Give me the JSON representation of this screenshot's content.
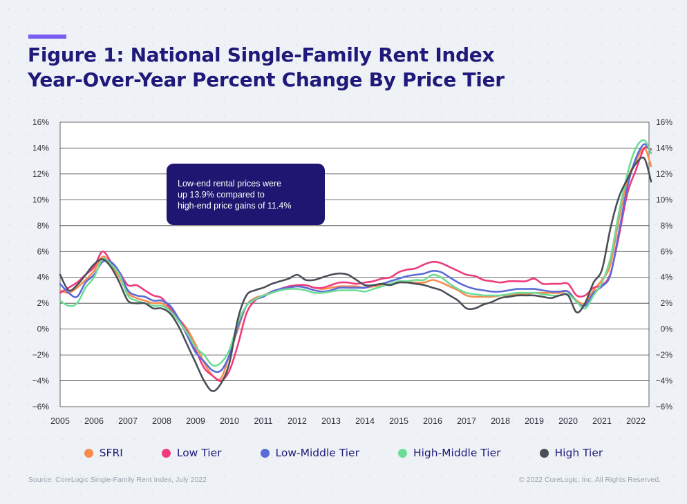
{
  "title_lines": [
    "Figure 1: National Single-Family Rent Index",
    "Year-Over-Year Percent Change By Price Tier"
  ],
  "callout": [
    "Low-end rental prices were",
    "up 13.9% compared to",
    "high-end price gains of 11.4%"
  ],
  "source": "Source: CoreLogic Single-Family Rent Index, July 2022",
  "copyright": "© 2022 CoreLogic, Inc. All Rights Reserved.",
  "chart_data": {
    "type": "line",
    "title": "Figure 1: National Single-Family Rent Index Year-Over-Year Percent Change By Price Tier",
    "xlabel": "",
    "ylabel": "",
    "xlim": [
      2005,
      2022.45
    ],
    "ylim": [
      -6,
      16
    ],
    "grid": true,
    "legend_position": "bottom",
    "x_ticks": [
      "2005",
      "2006",
      "2007",
      "2008",
      "2009",
      "2010",
      "2011",
      "2012",
      "2013",
      "2014",
      "2015",
      "2016",
      "2017",
      "2018",
      "2019",
      "2020",
      "2021",
      "2022"
    ],
    "y_ticks": [
      "−6%",
      "−4%",
      "−2%",
      "0%",
      "2%",
      "4%",
      "6%",
      "8%",
      "10%",
      "12%",
      "14%",
      "16%"
    ],
    "x": [
      2005.0,
      2005.25,
      2005.5,
      2005.75,
      2006.0,
      2006.25,
      2006.5,
      2006.75,
      2007.0,
      2007.25,
      2007.5,
      2007.75,
      2008.0,
      2008.25,
      2008.5,
      2008.75,
      2009.0,
      2009.25,
      2009.5,
      2009.75,
      2010.0,
      2010.25,
      2010.5,
      2010.75,
      2011.0,
      2011.25,
      2011.5,
      2011.75,
      2012.0,
      2012.25,
      2012.5,
      2012.75,
      2013.0,
      2013.25,
      2013.5,
      2013.75,
      2014.0,
      2014.25,
      2014.5,
      2014.75,
      2015.0,
      2015.25,
      2015.5,
      2015.75,
      2016.0,
      2016.25,
      2016.5,
      2016.75,
      2017.0,
      2017.25,
      2017.5,
      2017.75,
      2018.0,
      2018.25,
      2018.5,
      2018.75,
      2019.0,
      2019.25,
      2019.5,
      2019.75,
      2020.0,
      2020.25,
      2020.5,
      2020.75,
      2021.0,
      2021.25,
      2021.5,
      2021.75,
      2022.0,
      2022.25,
      2022.45
    ],
    "series": [
      {
        "name": "SFRI",
        "color": "#f78b4d",
        "values": [
          3.0,
          2.8,
          3.2,
          3.8,
          4.5,
          5.6,
          5.0,
          4.0,
          2.8,
          2.4,
          2.2,
          2.0,
          2.0,
          1.5,
          0.8,
          0.0,
          -1.2,
          -2.6,
          -3.6,
          -3.8,
          -2.0,
          0.0,
          1.8,
          2.4,
          2.6,
          2.9,
          3.1,
          3.3,
          3.4,
          3.4,
          3.2,
          3.1,
          3.2,
          3.3,
          3.3,
          3.3,
          3.2,
          3.3,
          3.4,
          3.5,
          3.6,
          3.6,
          3.6,
          3.6,
          3.8,
          3.6,
          3.3,
          3.0,
          2.6,
          2.5,
          2.5,
          2.5,
          2.6,
          2.6,
          2.7,
          2.7,
          2.8,
          2.8,
          2.8,
          2.8,
          2.9,
          2.2,
          2.0,
          3.0,
          3.8,
          5.0,
          8.5,
          11.5,
          13.0,
          14.0,
          12.6
        ]
      },
      {
        "name": "Low Tier",
        "color": "#ef3b7e",
        "values": [
          2.8,
          3.2,
          3.6,
          4.2,
          4.8,
          6.0,
          5.2,
          4.4,
          3.4,
          3.4,
          3.0,
          2.6,
          2.4,
          1.6,
          0.8,
          -0.2,
          -1.6,
          -3.0,
          -3.6,
          -4.0,
          -3.2,
          -1.2,
          1.2,
          2.2,
          2.6,
          2.8,
          3.1,
          3.3,
          3.4,
          3.4,
          3.2,
          3.2,
          3.4,
          3.6,
          3.6,
          3.5,
          3.6,
          3.7,
          3.9,
          4.0,
          4.4,
          4.6,
          4.7,
          5.0,
          5.2,
          5.1,
          4.8,
          4.5,
          4.2,
          4.1,
          3.8,
          3.7,
          3.6,
          3.7,
          3.7,
          3.7,
          3.9,
          3.5,
          3.5,
          3.5,
          3.5,
          2.6,
          2.6,
          3.2,
          3.4,
          4.3,
          7.2,
          10.5,
          12.3,
          14.0,
          13.9
        ]
      },
      {
        "name": "Low-Middle Tier",
        "color": "#5b6bd8",
        "values": [
          3.5,
          2.8,
          2.5,
          3.6,
          4.2,
          5.2,
          5.2,
          4.4,
          3.0,
          2.6,
          2.5,
          2.2,
          2.2,
          1.8,
          0.8,
          -0.5,
          -1.8,
          -2.5,
          -3.2,
          -3.2,
          -2.0,
          0.2,
          1.8,
          2.3,
          2.5,
          2.9,
          3.1,
          3.2,
          3.3,
          3.2,
          3.0,
          2.9,
          3.0,
          3.2,
          3.2,
          3.2,
          3.2,
          3.4,
          3.5,
          3.7,
          3.9,
          4.1,
          4.2,
          4.3,
          4.5,
          4.4,
          4.0,
          3.6,
          3.3,
          3.1,
          3.0,
          2.9,
          2.9,
          3.0,
          3.1,
          3.1,
          3.1,
          3.0,
          2.9,
          2.9,
          2.9,
          2.1,
          1.8,
          2.8,
          3.3,
          4.2,
          7.5,
          11.0,
          13.2,
          14.3,
          13.6
        ]
      },
      {
        "name": "High-Middle Tier",
        "color": "#6edc96",
        "values": [
          2.2,
          1.8,
          2.0,
          3.2,
          4.0,
          5.4,
          5.0,
          4.2,
          2.6,
          2.2,
          2.0,
          1.8,
          1.8,
          1.4,
          0.6,
          -0.3,
          -1.4,
          -2.0,
          -2.8,
          -2.6,
          -1.6,
          0.5,
          1.8,
          2.3,
          2.6,
          2.8,
          3.0,
          3.1,
          3.1,
          3.0,
          2.8,
          2.8,
          2.9,
          3.0,
          3.0,
          3.0,
          2.9,
          3.1,
          3.3,
          3.5,
          3.7,
          3.7,
          3.8,
          3.8,
          4.2,
          4.0,
          3.5,
          3.1,
          2.8,
          2.7,
          2.6,
          2.6,
          2.6,
          2.7,
          2.8,
          2.8,
          2.8,
          2.7,
          2.6,
          2.6,
          2.7,
          2.1,
          1.6,
          2.6,
          3.6,
          5.5,
          9.0,
          12.0,
          14.0,
          14.6,
          13.6
        ]
      },
      {
        "name": "High Tier",
        "color": "#4a4e57",
        "values": [
          4.2,
          3.0,
          3.4,
          4.2,
          5.0,
          5.4,
          4.8,
          3.6,
          2.2,
          2.0,
          2.0,
          1.6,
          1.6,
          1.2,
          0.2,
          -1.2,
          -2.6,
          -4.0,
          -4.8,
          -4.2,
          -2.6,
          0.8,
          2.6,
          3.0,
          3.2,
          3.5,
          3.7,
          3.9,
          4.2,
          3.8,
          3.8,
          4.0,
          4.2,
          4.3,
          4.2,
          3.8,
          3.4,
          3.4,
          3.5,
          3.4,
          3.6,
          3.6,
          3.5,
          3.4,
          3.2,
          3.0,
          2.6,
          2.2,
          1.6,
          1.6,
          1.9,
          2.1,
          2.4,
          2.5,
          2.6,
          2.6,
          2.6,
          2.5,
          2.4,
          2.6,
          2.6,
          1.3,
          2.0,
          3.6,
          4.6,
          7.8,
          10.2,
          11.6,
          12.8,
          13.2,
          11.4
        ]
      }
    ]
  }
}
